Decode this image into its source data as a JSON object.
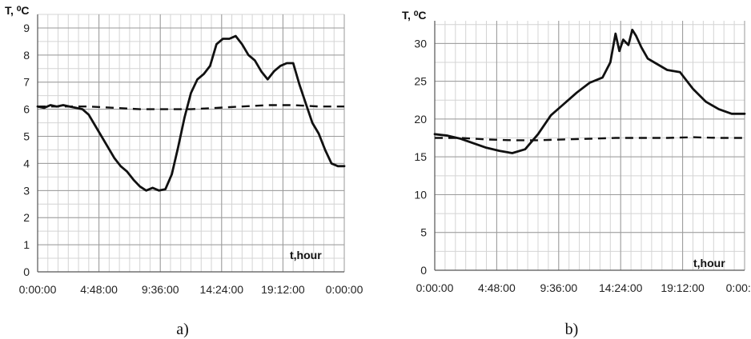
{
  "chart_data": [
    {
      "type": "line",
      "ylabel": "T, ⁰C",
      "xlabel": "t,hour",
      "caption": "a)",
      "ylim": [
        0,
        9.5
      ],
      "yticks": [
        0,
        1,
        2,
        3,
        4,
        5,
        6,
        7,
        8,
        9
      ],
      "xlim": [
        0,
        24
      ],
      "xticks": [
        0,
        4.8,
        9.6,
        14.4,
        19.2,
        24
      ],
      "xtick_labels": [
        "0:00:00",
        "4:48:00",
        "9:36:00",
        "14:24:00",
        "19:12:00",
        "0:00:00"
      ],
      "grid": true,
      "series": [
        {
          "style": "solid",
          "x": [
            0,
            0.5,
            1,
            1.5,
            2,
            2.5,
            3,
            3.5,
            4,
            4.5,
            5,
            5.5,
            6,
            6.5,
            7,
            7.5,
            8,
            8.5,
            9,
            9.5,
            10,
            10.5,
            11,
            11.5,
            12,
            12.5,
            13,
            13.5,
            14,
            14.5,
            15,
            15.5,
            16,
            16.5,
            17,
            17.5,
            18,
            18.5,
            19,
            19.5,
            20,
            20.5,
            21,
            21.5,
            22,
            22.5,
            23,
            23.5,
            24
          ],
          "values": [
            6.1,
            6.05,
            6.15,
            6.1,
            6.15,
            6.1,
            6.05,
            6.0,
            5.8,
            5.4,
            5.0,
            4.6,
            4.2,
            3.9,
            3.7,
            3.4,
            3.15,
            3.0,
            3.1,
            3.0,
            3.05,
            3.6,
            4.6,
            5.7,
            6.6,
            7.1,
            7.3,
            7.6,
            8.4,
            8.6,
            8.6,
            8.7,
            8.4,
            8.0,
            7.8,
            7.4,
            7.1,
            7.4,
            7.6,
            7.7,
            7.7,
            6.9,
            6.2,
            5.5,
            5.1,
            4.5,
            4.0,
            3.9,
            3.9
          ]
        },
        {
          "style": "dashed",
          "x": [
            0,
            2,
            4,
            6,
            8,
            10,
            12,
            14,
            16,
            18,
            20,
            22,
            24
          ],
          "values": [
            6.1,
            6.1,
            6.1,
            6.05,
            6.0,
            6.0,
            6.0,
            6.05,
            6.1,
            6.15,
            6.15,
            6.1,
            6.1
          ]
        }
      ]
    },
    {
      "type": "line",
      "ylabel": "T, ⁰C",
      "xlabel": "t,hour",
      "caption": "b)",
      "ylim": [
        0,
        33
      ],
      "yticks": [
        0,
        5,
        10,
        15,
        20,
        25,
        30
      ],
      "xlim": [
        0,
        24
      ],
      "xticks": [
        0,
        4.8,
        9.6,
        14.4,
        19.2,
        24
      ],
      "xtick_labels": [
        "0:00:00",
        "4:48:00",
        "9:36:00",
        "14:24:00",
        "19:12:00",
        "0:00:00"
      ],
      "grid": true,
      "series": [
        {
          "style": "solid",
          "x": [
            0,
            1,
            2,
            3,
            4,
            5,
            6,
            7,
            8,
            9,
            10,
            11,
            12,
            13,
            13.6,
            14,
            14.3,
            14.6,
            15,
            15.3,
            15.6,
            16,
            16.5,
            17,
            18,
            19,
            20,
            21,
            22,
            23,
            24
          ],
          "values": [
            18,
            17.8,
            17.4,
            16.8,
            16.2,
            15.8,
            15.5,
            16.0,
            18.0,
            20.5,
            22.0,
            23.5,
            24.8,
            25.5,
            27.5,
            31.3,
            29.0,
            30.5,
            29.8,
            31.8,
            31.0,
            29.5,
            28.0,
            27.5,
            26.5,
            26.2,
            24.0,
            22.3,
            21.3,
            20.7,
            20.7
          ]
        },
        {
          "style": "dashed",
          "x": [
            0,
            2,
            4,
            6,
            8,
            10,
            12,
            14,
            16,
            18,
            20,
            22,
            24
          ],
          "values": [
            17.5,
            17.5,
            17.3,
            17.2,
            17.2,
            17.3,
            17.4,
            17.5,
            17.5,
            17.5,
            17.6,
            17.5,
            17.5
          ]
        }
      ]
    }
  ]
}
